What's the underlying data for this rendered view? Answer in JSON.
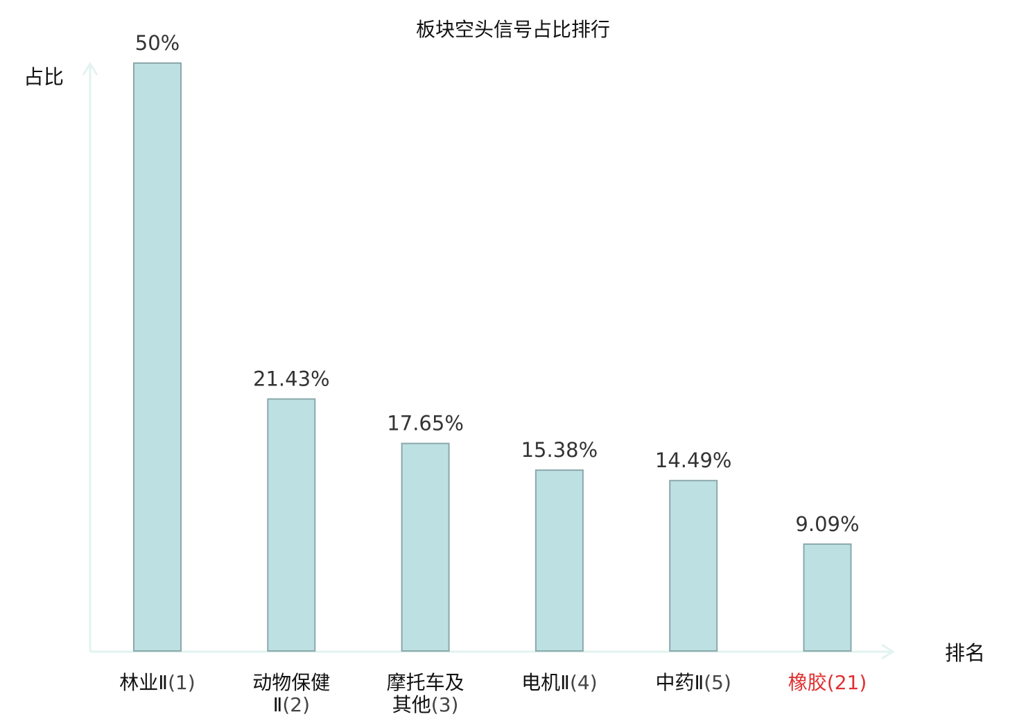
{
  "chart_data": {
    "type": "bar",
    "title": "板块空头信号占比排行",
    "ylabel": "占比",
    "xlabel": "排名",
    "ylim": [
      0,
      50
    ],
    "grid": false,
    "bar_color": "#bde0e3",
    "bar_edge_color": "#8aa8ab",
    "axis_color": "#e2f3ef",
    "highlight_color": "#e03030",
    "categories": [
      {
        "name_lines": [
          "林业Ⅱ"
        ],
        "rank": "(1)",
        "highlight": false
      },
      {
        "name_lines": [
          "动物保健",
          "Ⅱ"
        ],
        "rank": "(2)",
        "highlight": false
      },
      {
        "name_lines": [
          "摩托车及",
          "其他"
        ],
        "rank": "(3)",
        "highlight": false
      },
      {
        "name_lines": [
          "电机Ⅱ"
        ],
        "rank": "(4)",
        "highlight": false
      },
      {
        "name_lines": [
          "中药Ⅱ"
        ],
        "rank": "(5)",
        "highlight": false
      },
      {
        "name_lines": [
          "橡胶"
        ],
        "rank": "(21)",
        "highlight": true
      }
    ],
    "values": [
      50,
      21.43,
      17.65,
      15.38,
      14.49,
      9.09
    ],
    "value_labels": [
      "50%",
      "21.43%",
      "17.65%",
      "15.38%",
      "14.49%",
      "9.09%"
    ]
  }
}
